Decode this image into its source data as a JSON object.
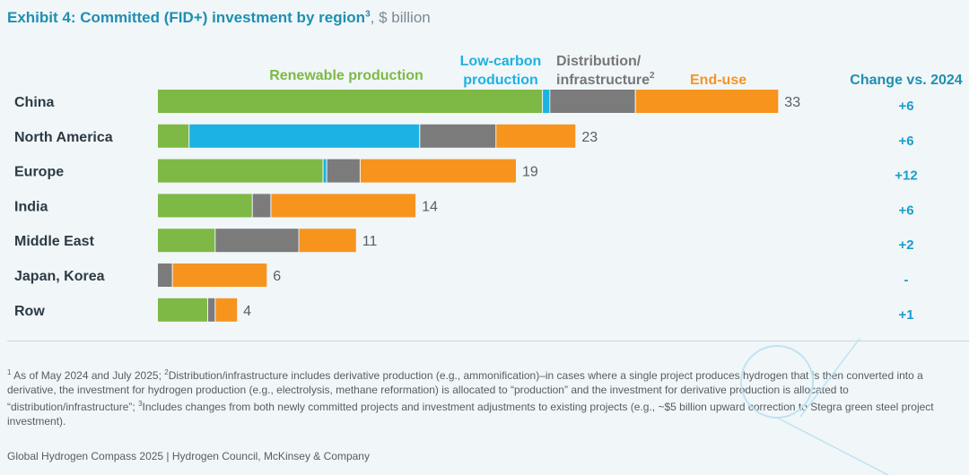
{
  "title": {
    "text": "Exhibit 4: Committed (FID+) investment by region",
    "sup": "3",
    "unit": ", $ billion"
  },
  "colors": {
    "renewable": "#7db944",
    "lowcarbon": "#1cb2e3",
    "distribution": "#7b7b7b",
    "enduse": "#f7941e",
    "accent": "#1f8fb0"
  },
  "chart_data": {
    "type": "bar",
    "orientation": "horizontal",
    "stacked": true,
    "categories": [
      "China",
      "North America",
      "Europe",
      "India",
      "Middle East",
      "Japan, Korea",
      "Row"
    ],
    "series": [
      {
        "name": "Renewable production",
        "values": [
          20.7,
          1.7,
          8.9,
          5.1,
          3.1,
          0,
          2.7
        ]
      },
      {
        "name": "Low-carbon production",
        "values": [
          0.4,
          12.4,
          0.2,
          0,
          0,
          0,
          0
        ]
      },
      {
        "name": "Distribution/ infrastructure",
        "name_sup": "2",
        "values": [
          4.6,
          4.1,
          1.8,
          1.0,
          4.5,
          0.8,
          0.4
        ]
      },
      {
        "name": "End-use",
        "values": [
          7.7,
          4.3,
          8.4,
          7.8,
          3.1,
          5.1,
          1.2
        ]
      }
    ],
    "totals": [
      "33",
      "23",
      "19",
      "14",
      "11",
      "6",
      "4"
    ],
    "change_header": "Change vs. 2024",
    "changes": [
      "+6",
      "+6",
      "+12",
      "+6",
      "+2",
      "-",
      "+1"
    ],
    "xlim": [
      0,
      33
    ]
  },
  "footnotes": {
    "n1": "1",
    "t1": " As of May 2024 and July 2025; ",
    "n2": "2",
    "t2": "Distribution/infrastructure includes derivative production (e.g., ammonification)–in cases where a single project produces hydrogen that is then converted into a derivative, the investment for hydrogen production (e.g., electrolysis, methane reformation) is allocated to “production” and the investment for derivative production is allocated to “distribution/infrastructure”; ",
    "n3": "3",
    "t3": "Includes changes from both newly committed projects and investment adjustments to existing projects (e.g., ~$5 billion upward correction to Stegra green steel project investment)."
  },
  "source": "Global Hydrogen Compass 2025 | Hydrogen Council, McKinsey & Company"
}
